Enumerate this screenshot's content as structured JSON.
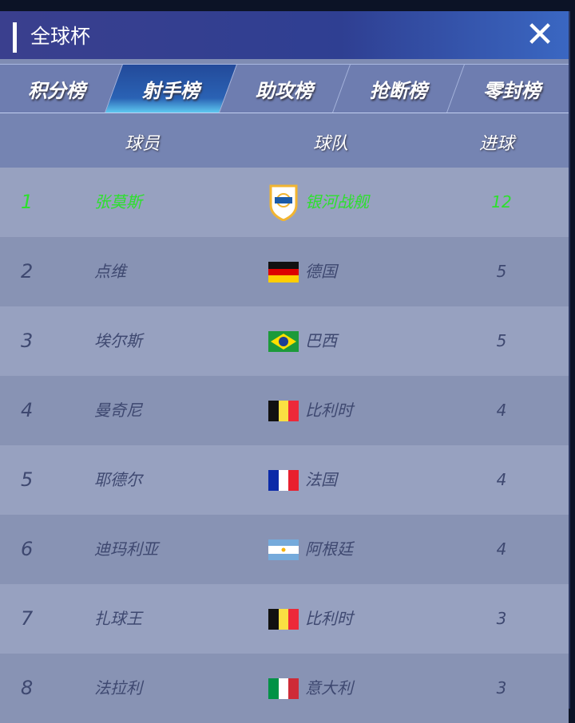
{
  "header": {
    "title": "全球杯",
    "close_icon": "close-x-icon"
  },
  "tabs": [
    {
      "label": "积分榜"
    },
    {
      "label": "射手榜",
      "active": true
    },
    {
      "label": "助攻榜"
    },
    {
      "label": "抢断榜"
    },
    {
      "label": "零封榜"
    }
  ],
  "columns": {
    "player": "球员",
    "team": "球队",
    "goals": "进球"
  },
  "highlight_color": "#2de02d",
  "rows": [
    {
      "rank": "1",
      "player": "张莫斯",
      "team": "银河战舰",
      "goals": "12",
      "emblem": "club-shield"
    },
    {
      "rank": "2",
      "player": "点维",
      "team": "德国",
      "goals": "5",
      "emblem": "flag-germany"
    },
    {
      "rank": "3",
      "player": "埃尔斯",
      "team": "巴西",
      "goals": "5",
      "emblem": "flag-brazil"
    },
    {
      "rank": "4",
      "player": "曼奇尼",
      "team": "比利时",
      "goals": "4",
      "emblem": "flag-belgium"
    },
    {
      "rank": "5",
      "player": "耶德尔",
      "team": "法国",
      "goals": "4",
      "emblem": "flag-france"
    },
    {
      "rank": "6",
      "player": "迪玛利亚",
      "team": "阿根廷",
      "goals": "4",
      "emblem": "flag-argentina"
    },
    {
      "rank": "7",
      "player": "扎球王",
      "team": "比利时",
      "goals": "3",
      "emblem": "flag-belgium"
    },
    {
      "rank": "8",
      "player": "法拉利",
      "team": "意大利",
      "goals": "3",
      "emblem": "flag-italy"
    }
  ]
}
